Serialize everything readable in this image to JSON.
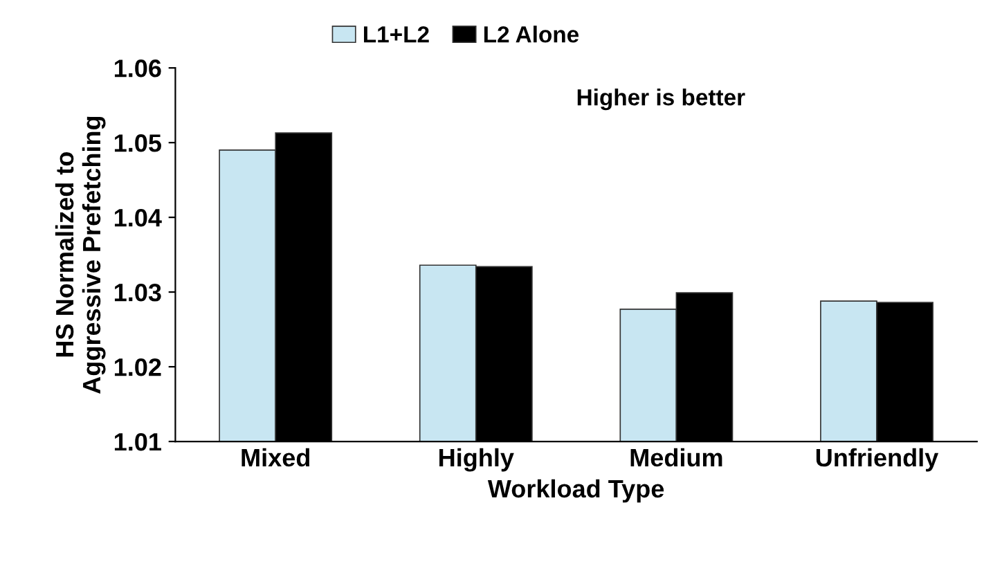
{
  "chart_data": {
    "type": "bar",
    "xlabel": "Workload Type",
    "ylabel": "HS Normalized to\nAggressive Prefetching",
    "categories": [
      "Mixed",
      "Highly",
      "Medium",
      "Unfriendly"
    ],
    "series": [
      {
        "name": "L1+L2",
        "color": "#c8e6f2",
        "values": [
          1.049,
          1.0336,
          1.0277,
          1.0288
        ]
      },
      {
        "name": "L2 Alone",
        "color": "#000000",
        "values": [
          1.0513,
          1.0334,
          1.0299,
          1.0286
        ]
      }
    ],
    "ylim": [
      1.01,
      1.06
    ],
    "yticks": [
      1.01,
      1.02,
      1.03,
      1.04,
      1.05,
      1.06
    ],
    "grid": false,
    "legend": "top",
    "annotations": [
      "Higher is better"
    ]
  }
}
